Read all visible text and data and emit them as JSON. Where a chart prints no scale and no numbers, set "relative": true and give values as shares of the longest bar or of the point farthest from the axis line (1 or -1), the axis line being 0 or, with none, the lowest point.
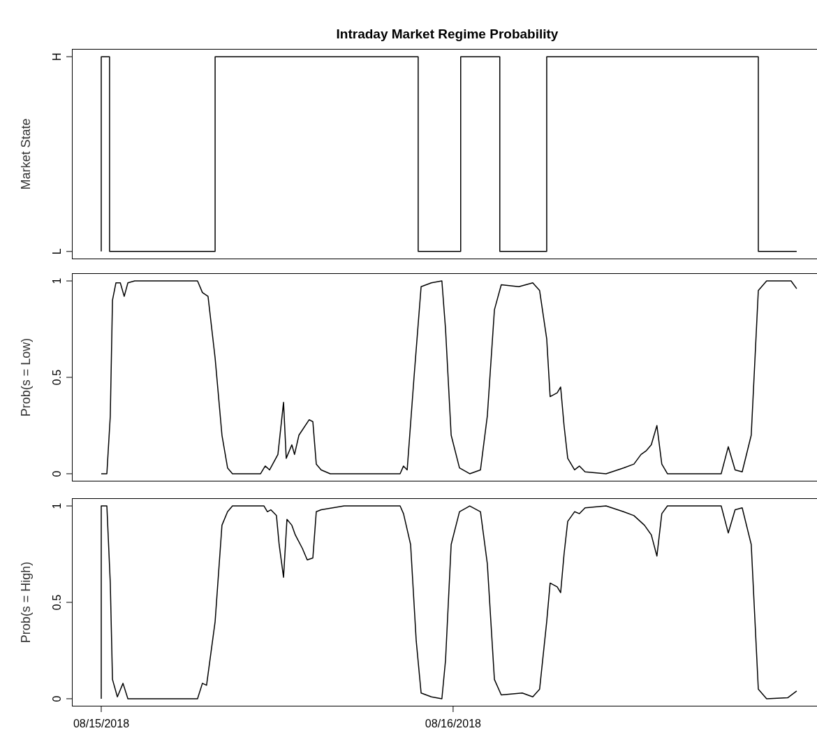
{
  "chart_data": [
    {
      "type": "step",
      "title": "Intraday Market Regime Probability",
      "ylabel": "Market State",
      "xlim": [
        "2018-08-14T22:00",
        "2018-08-17T01:12"
      ],
      "relative": true,
      "annotations": [
        "L",
        "H"
      ],
      "tick_labels": "y",
      "series": [
        {
          "color": "#000000",
          "x": [
            "2018-08-15T00:00",
            "2018-08-15T00:00",
            "2018-08-15T00:34",
            "2018-08-15T07:46",
            "2018-08-15T21:37",
            "2018-08-16T00:31",
            "2018-08-16T03:11",
            "2018-08-16T06:23",
            "2018-08-16T20:49",
            "2018-08-16T23:26"
          ],
          "values": [
            0,
            1,
            0,
            1,
            0,
            1,
            0,
            1,
            0,
            0
          ]
        }
      ]
    },
    {
      "type": "line",
      "ylabel": "Prob(s = Low)",
      "xlim": [
        "2018-08-14T22:00",
        "2018-08-17T01:12"
      ],
      "ylim": [
        -0.04,
        1.04
      ],
      "yticks": [
        0,
        0.5,
        1
      ],
      "tick_labels": "y",
      "series": [
        {
          "color": "#000000",
          "x": [
            "2018-08-15T00:00",
            "2018-08-15T00:23",
            "2018-08-15T00:37",
            "2018-08-15T00:46",
            "2018-08-15T01:00",
            "2018-08-15T01:18",
            "2018-08-15T01:34",
            "2018-08-15T01:49",
            "2018-08-15T02:17",
            "2018-08-15T06:34",
            "2018-08-15T06:54",
            "2018-08-15T07:17",
            "2018-08-15T07:46",
            "2018-08-15T08:14",
            "2018-08-15T08:37",
            "2018-08-15T08:57",
            "2018-08-15T10:52",
            "2018-08-15T11:11",
            "2018-08-15T11:29",
            "2018-08-15T12:03",
            "2018-08-15T12:26",
            "2018-08-15T12:37",
            "2018-08-15T13:00",
            "2018-08-15T13:11",
            "2018-08-15T13:29",
            "2018-08-15T14:11",
            "2018-08-15T14:26",
            "2018-08-15T14:40",
            "2018-08-15T15:00",
            "2018-08-15T15:37",
            "2018-08-15T20:23",
            "2018-08-15T20:37",
            "2018-08-15T20:52",
            "2018-08-15T21:20",
            "2018-08-15T21:49",
            "2018-08-15T22:31",
            "2018-08-15T23:14",
            "2018-08-15T23:29",
            "2018-08-15T23:52",
            "2018-08-16T00:26",
            "2018-08-16T01:08",
            "2018-08-16T01:52",
            "2018-08-16T02:20",
            "2018-08-16T02:49",
            "2018-08-16T03:17",
            "2018-08-16T04:29",
            "2018-08-16T05:26",
            "2018-08-16T05:54",
            "2018-08-16T06:23",
            "2018-08-16T06:37",
            "2018-08-16T07:06",
            "2018-08-16T07:20",
            "2018-08-16T07:34",
            "2018-08-16T07:49",
            "2018-08-16T08:17",
            "2018-08-16T08:37",
            "2018-08-16T09:00",
            "2018-08-16T10:26",
            "2018-08-16T11:37",
            "2018-08-16T12:20",
            "2018-08-16T12:49",
            "2018-08-16T13:11",
            "2018-08-16T13:31",
            "2018-08-16T13:54",
            "2018-08-16T14:14",
            "2018-08-16T14:37",
            "2018-08-16T18:17",
            "2018-08-16T18:46",
            "2018-08-16T19:14",
            "2018-08-16T19:43",
            "2018-08-16T20:20",
            "2018-08-16T20:49",
            "2018-08-16T21:23",
            "2018-08-16T22:49",
            "2018-08-16T23:03",
            "2018-08-16T23:26"
          ],
          "values": [
            0,
            0,
            0.3,
            0.9,
            0.99,
            0.99,
            0.92,
            0.99,
            1,
            1,
            0.94,
            0.92,
            0.6,
            0.2,
            0.03,
            0,
            0,
            0.04,
            0.02,
            0.1,
            0.37,
            0.08,
            0.15,
            0.1,
            0.2,
            0.28,
            0.27,
            0.05,
            0.02,
            0,
            0,
            0.04,
            0.02,
            0.5,
            0.97,
            0.99,
            1,
            0.75,
            0.2,
            0.03,
            0,
            0.02,
            0.3,
            0.85,
            0.98,
            0.97,
            0.99,
            0.95,
            0.7,
            0.4,
            0.42,
            0.45,
            0.25,
            0.08,
            0.02,
            0.04,
            0.01,
            0,
            0.03,
            0.05,
            0.1,
            0.12,
            0.15,
            0.25,
            0.05,
            0,
            0,
            0.14,
            0.02,
            0.01,
            0.2,
            0.95,
            1,
            1,
            1,
            0.96
          ]
        }
      ]
    },
    {
      "type": "line",
      "ylabel": "Prob(s = High)",
      "xlim": [
        "2018-08-14T22:00",
        "2018-08-17T01:12"
      ],
      "xticks": [
        {
          "value": "2018-08-15",
          "label": "08/15/2018"
        },
        {
          "value": "2018-08-16",
          "label": "08/16/2018"
        }
      ],
      "ylim": [
        -0.04,
        1.04
      ],
      "yticks": [
        0,
        0.5,
        1
      ],
      "series": [
        {
          "color": "#000000",
          "x": [
            "2018-08-15T00:00",
            "2018-08-15T00:00",
            "2018-08-15T00:23",
            "2018-08-15T00:37",
            "2018-08-15T00:46",
            "2018-08-15T01:06",
            "2018-08-15T01:29",
            "2018-08-15T01:49",
            "2018-08-15T06:34",
            "2018-08-15T06:54",
            "2018-08-15T07:11",
            "2018-08-15T07:46",
            "2018-08-15T08:14",
            "2018-08-15T08:37",
            "2018-08-15T08:57",
            "2018-08-15T11:06",
            "2018-08-15T11:20",
            "2018-08-15T11:34",
            "2018-08-15T11:57",
            "2018-08-15T12:08",
            "2018-08-15T12:26",
            "2018-08-15T12:40",
            "2018-08-15T13:00",
            "2018-08-15T13:14",
            "2018-08-15T13:43",
            "2018-08-15T14:03",
            "2018-08-15T14:26",
            "2018-08-15T14:40",
            "2018-08-15T15:00",
            "2018-08-15T16:34",
            "2018-08-15T20:23",
            "2018-08-15T20:37",
            "2018-08-15T21:06",
            "2018-08-15T21:29",
            "2018-08-15T21:49",
            "2018-08-15T22:31",
            "2018-08-15T23:14",
            "2018-08-15T23:29",
            "2018-08-15T23:52",
            "2018-08-16T00:26",
            "2018-08-16T01:08",
            "2018-08-16T01:52",
            "2018-08-16T02:20",
            "2018-08-16T02:49",
            "2018-08-16T03:17",
            "2018-08-16T04:43",
            "2018-08-16T05:26",
            "2018-08-16T05:54",
            "2018-08-16T06:23",
            "2018-08-16T06:37",
            "2018-08-16T07:06",
            "2018-08-16T07:20",
            "2018-08-16T07:34",
            "2018-08-16T07:49",
            "2018-08-16T08:17",
            "2018-08-16T08:37",
            "2018-08-16T09:00",
            "2018-08-16T10:26",
            "2018-08-16T11:37",
            "2018-08-16T12:20",
            "2018-08-16T13:03",
            "2018-08-16T13:31",
            "2018-08-16T13:54",
            "2018-08-16T14:14",
            "2018-08-16T14:37",
            "2018-08-16T18:17",
            "2018-08-16T18:46",
            "2018-08-16T19:14",
            "2018-08-16T19:43",
            "2018-08-16T20:20",
            "2018-08-16T20:49",
            "2018-08-16T21:23",
            "2018-08-16T22:49",
            "2018-08-16T23:26"
          ],
          "values": [
            0,
            1,
            1,
            0.6,
            0.1,
            0.01,
            0.08,
            0,
            0,
            0.08,
            0.07,
            0.4,
            0.9,
            0.97,
            1,
            1,
            0.97,
            0.98,
            0.95,
            0.8,
            0.63,
            0.93,
            0.9,
            0.85,
            0.78,
            0.72,
            0.73,
            0.97,
            0.98,
            1,
            1,
            0.96,
            0.8,
            0.3,
            0.03,
            0.01,
            0,
            0.2,
            0.8,
            0.97,
            1,
            0.97,
            0.7,
            0.1,
            0.02,
            0.03,
            0.01,
            0.05,
            0.4,
            0.6,
            0.58,
            0.55,
            0.75,
            0.92,
            0.97,
            0.96,
            0.99,
            1,
            0.97,
            0.95,
            0.9,
            0.85,
            0.74,
            0.96,
            1,
            1,
            0.86,
            0.98,
            0.99,
            0.8,
            0.05,
            0,
            0.005,
            0.04
          ]
        }
      ]
    }
  ]
}
